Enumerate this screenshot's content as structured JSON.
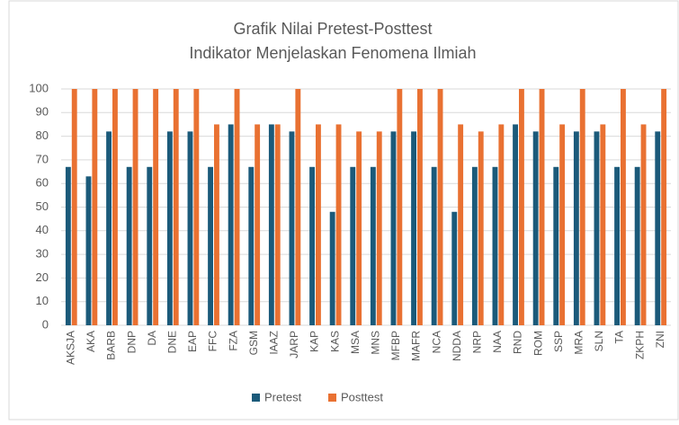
{
  "chart_data": {
    "type": "bar",
    "title": "Grafik Nilai Pretest-Posttest",
    "subtitle": "Indikator Menjelaskan Fenomena Ilmiah",
    "categories": [
      "AKSJA",
      "AKA",
      "BARB",
      "DNP",
      "DA",
      "DNE",
      "EAP",
      "FFC",
      "FZA",
      "GSM",
      "IAAZ",
      "JARP",
      "KAP",
      "KAS",
      "MSA",
      "MNS",
      "MFBP",
      "MAFR",
      "NCA",
      "NDDA",
      "NRP",
      "NAA",
      "RND",
      "ROM",
      "SSP",
      "MRA",
      "SLN",
      "TA",
      "ZKPH",
      "ZNI"
    ],
    "series": [
      {
        "name": "Pretest",
        "color": "#1b5a7a",
        "values": [
          67,
          63,
          82,
          67,
          67,
          82,
          82,
          67,
          85,
          67,
          85,
          82,
          67,
          48,
          67,
          67,
          82,
          82,
          67,
          48,
          67,
          67,
          85,
          82,
          67,
          82,
          82,
          67,
          67,
          82
        ]
      },
      {
        "name": "Posttest",
        "color": "#e97132",
        "values": [
          100,
          100,
          100,
          100,
          100,
          100,
          100,
          85,
          100,
          85,
          85,
          100,
          85,
          85,
          82,
          82,
          100,
          100,
          100,
          85,
          82,
          85,
          100,
          100,
          85,
          100,
          85,
          100,
          85,
          100
        ]
      }
    ],
    "ylim": [
      0,
      100
    ],
    "yticks": [
      0,
      10,
      20,
      30,
      40,
      50,
      60,
      70,
      80,
      90,
      100
    ],
    "grid": true,
    "legend": "bottom"
  }
}
